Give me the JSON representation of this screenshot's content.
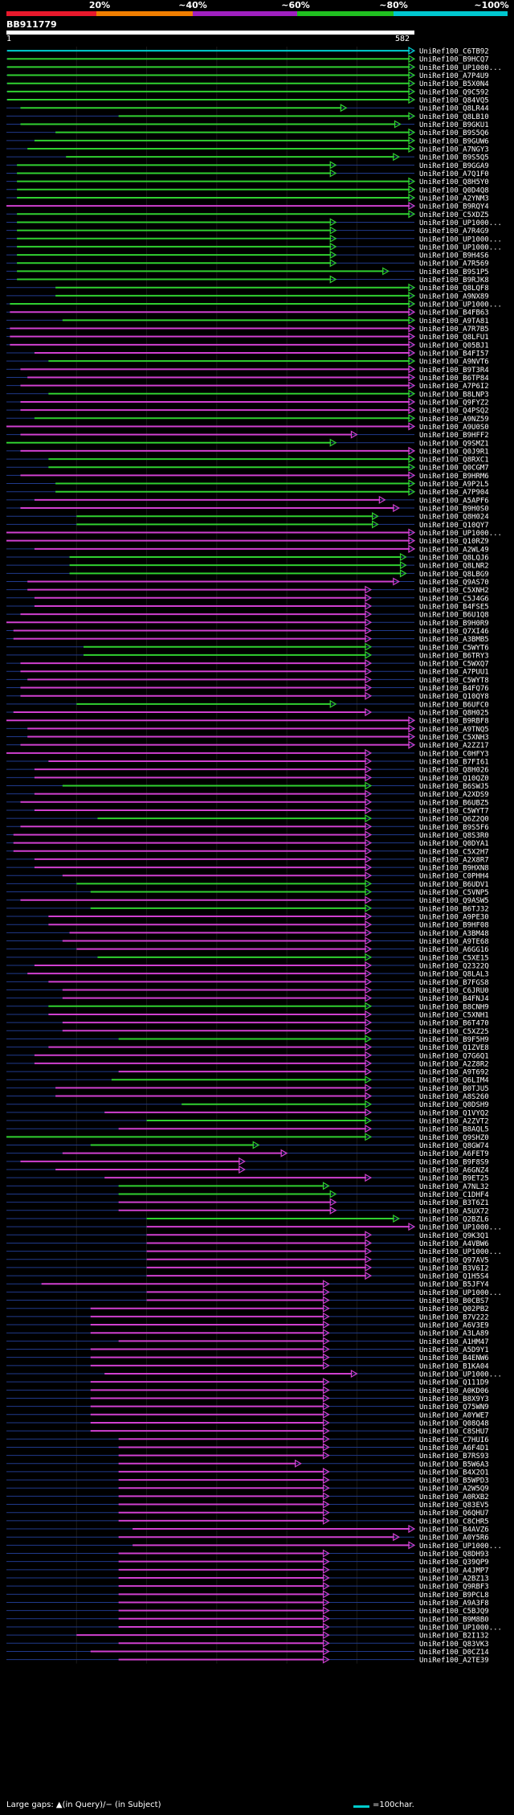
{
  "query": {
    "name": "BB911779",
    "start": "1",
    "end": "582",
    "length": 582
  },
  "legend": {
    "labels": [
      "20%",
      "~40%",
      "~60%",
      "~80%",
      "~100%"
    ],
    "colors": [
      "#e8192c",
      "#f07e00",
      "#a020c0",
      "#20c020",
      "#00c8d0"
    ]
  },
  "hit_colors": {
    "cyan": "#00d0d0",
    "green": "#30d030",
    "magenta": "#d040d0",
    "label": "#ffffff",
    "blue_line": "#203a8c"
  },
  "footer": {
    "note": "Large gaps: ▲(in Query)/− (in Subject)",
    "scale_label": "=100char."
  },
  "hits": [
    {
      "id": "UniRef100_C6TB92",
      "s": 1,
      "e": 582,
      "c": "cyan"
    },
    {
      "id": "UniRef100_B9HCQ7",
      "s": 1,
      "e": 582,
      "c": "green"
    },
    {
      "id": "UniRef100_UP1000...",
      "s": 1,
      "e": 582,
      "c": "green"
    },
    {
      "id": "UniRef100_A7P4U9",
      "s": 1,
      "e": 582,
      "c": "green"
    },
    {
      "id": "UniRef100_B5X0N4",
      "s": 1,
      "e": 582,
      "c": "green"
    },
    {
      "id": "UniRef100_Q9C592",
      "s": 1,
      "e": 582,
      "c": "green"
    },
    {
      "id": "UniRef100_Q84VQ5",
      "s": 1,
      "e": 582,
      "c": "green"
    },
    {
      "id": "UniRef100_Q8LR44",
      "s": 20,
      "e": 485,
      "c": "green"
    },
    {
      "id": "UniRef100_Q8LB10",
      "s": 160,
      "e": 582,
      "c": "green"
    },
    {
      "id": "UniRef100_B9GKU1",
      "s": 20,
      "e": 562,
      "c": "green"
    },
    {
      "id": "UniRef100_B9S5Q6",
      "s": 70,
      "e": 582,
      "c": "green"
    },
    {
      "id": "UniRef100_B9GUW6",
      "s": 40,
      "e": 582,
      "c": "green"
    },
    {
      "id": "UniRef100_A7NGY3",
      "s": 30,
      "e": 582,
      "c": "green"
    },
    {
      "id": "UniRef100_B9S5Q5",
      "s": 85,
      "e": 560,
      "c": "green"
    },
    {
      "id": "UniRef100_B9GGA9",
      "s": 15,
      "e": 470,
      "c": "green"
    },
    {
      "id": "UniRef100_A7Q1F0",
      "s": 15,
      "e": 470,
      "c": "green"
    },
    {
      "id": "UniRef100_Q8H5Y0",
      "s": 15,
      "e": 582,
      "c": "green"
    },
    {
      "id": "UniRef100_Q0D4Q8",
      "s": 15,
      "e": 582,
      "c": "green"
    },
    {
      "id": "UniRef100_A2YNM3",
      "s": 15,
      "e": 582,
      "c": "green"
    },
    {
      "id": "UniRef100_B9RQY4",
      "s": 0,
      "e": 582,
      "c": "magenta"
    },
    {
      "id": "UniRef100_C5XDZ5",
      "s": 15,
      "e": 582,
      "c": "green"
    },
    {
      "id": "UniRef100_UP1000...",
      "s": 15,
      "e": 470,
      "c": "green"
    },
    {
      "id": "UniRef100_A7R4G9",
      "s": 15,
      "e": 470,
      "c": "green"
    },
    {
      "id": "UniRef100_UP1000...",
      "s": 15,
      "e": 470,
      "c": "green"
    },
    {
      "id": "UniRef100_UP1000...",
      "s": 15,
      "e": 470,
      "c": "green"
    },
    {
      "id": "UniRef100_B9H4S6",
      "s": 15,
      "e": 470,
      "c": "green"
    },
    {
      "id": "UniRef100_A7R569",
      "s": 15,
      "e": 470,
      "c": "green"
    },
    {
      "id": "UniRef100_B9S1P5",
      "s": 15,
      "e": 545,
      "c": "green"
    },
    {
      "id": "UniRef100_B9RJK8",
      "s": 15,
      "e": 470,
      "c": "green"
    },
    {
      "id": "UniRef100_Q8LQF8",
      "s": 70,
      "e": 582,
      "c": "green"
    },
    {
      "id": "UniRef100_A9NX89",
      "s": 70,
      "e": 582,
      "c": "green"
    },
    {
      "id": "UniRef100_UP1000...",
      "s": 5,
      "e": 582,
      "c": "green"
    },
    {
      "id": "UniRef100_B4FB63",
      "s": 5,
      "e": 582,
      "c": "magenta"
    },
    {
      "id": "UniRef100_A9TA81",
      "s": 80,
      "e": 582,
      "c": "green"
    },
    {
      "id": "UniRef100_A7R7B5",
      "s": 5,
      "e": 582,
      "c": "magenta"
    },
    {
      "id": "UniRef100_Q8LFU1",
      "s": 5,
      "e": 582,
      "c": "magenta"
    },
    {
      "id": "UniRef100_Q05BJ1",
      "s": 5,
      "e": 582,
      "c": "magenta"
    },
    {
      "id": "UniRef100_B4FI57",
      "s": 40,
      "e": 582,
      "c": "magenta"
    },
    {
      "id": "UniRef100_A9NVT6",
      "s": 60,
      "e": 582,
      "c": "green"
    },
    {
      "id": "UniRef100_B9T3R4",
      "s": 20,
      "e": 582,
      "c": "magenta"
    },
    {
      "id": "UniRef100_B6TP84",
      "s": 30,
      "e": 582,
      "c": "magenta"
    },
    {
      "id": "UniRef100_A7P6I2",
      "s": 20,
      "e": 582,
      "c": "magenta"
    },
    {
      "id": "UniRef100_B8LNP3",
      "s": 60,
      "e": 582,
      "c": "green"
    },
    {
      "id": "UniRef100_Q9FYZ2",
      "s": 20,
      "e": 582,
      "c": "magenta"
    },
    {
      "id": "UniRef100_Q4PSQ2",
      "s": 20,
      "e": 582,
      "c": "magenta"
    },
    {
      "id": "UniRef100_A9NZ59",
      "s": 40,
      "e": 582,
      "c": "green"
    },
    {
      "id": "UniRef100_A9U0S0",
      "s": 0,
      "e": 582,
      "c": "magenta"
    },
    {
      "id": "UniRef100_B9HFF2",
      "s": 20,
      "e": 500,
      "c": "magenta"
    },
    {
      "id": "UniRef100_Q9SMZ1",
      "s": 0,
      "e": 470,
      "c": "green"
    },
    {
      "id": "UniRef100_Q0J9R1",
      "s": 20,
      "e": 582,
      "c": "magenta"
    },
    {
      "id": "UniRef100_Q8RXC1",
      "s": 60,
      "e": 582,
      "c": "green"
    },
    {
      "id": "UniRef100_Q0CGM7",
      "s": 60,
      "e": 582,
      "c": "green"
    },
    {
      "id": "UniRef100_B9HRM6",
      "s": 20,
      "e": 582,
      "c": "magenta"
    },
    {
      "id": "UniRef100_A9P2L5",
      "s": 70,
      "e": 582,
      "c": "green"
    },
    {
      "id": "UniRef100_A7P904",
      "s": 70,
      "e": 582,
      "c": "green"
    },
    {
      "id": "UniRef100_A5APF6",
      "s": 40,
      "e": 540,
      "c": "magenta"
    },
    {
      "id": "UniRef100_B9H0S0",
      "s": 20,
      "e": 560,
      "c": "magenta"
    },
    {
      "id": "UniRef100_Q8H024",
      "s": 100,
      "e": 530,
      "c": "green"
    },
    {
      "id": "UniRef100_Q10QY7",
      "s": 100,
      "e": 530,
      "c": "green"
    },
    {
      "id": "UniRef100_UP1000...",
      "s": 0,
      "e": 582,
      "c": "magenta"
    },
    {
      "id": "UniRef100_Q10RZ9",
      "s": 0,
      "e": 582,
      "c": "magenta"
    },
    {
      "id": "UniRef100_A2WL49",
      "s": 40,
      "e": 582,
      "c": "magenta"
    },
    {
      "id": "UniRef100_Q8LQJ6",
      "s": 90,
      "e": 570,
      "c": "green"
    },
    {
      "id": "UniRef100_Q8LNR2",
      "s": 90,
      "e": 570,
      "c": "green"
    },
    {
      "id": "UniRef100_Q8LBG9",
      "s": 90,
      "e": 570,
      "c": "green"
    },
    {
      "id": "UniRef100_Q9AS70",
      "s": 30,
      "e": 560,
      "c": "magenta"
    },
    {
      "id": "UniRef100_C5XNH2",
      "s": 30,
      "e": 520,
      "c": "magenta"
    },
    {
      "id": "UniRef100_C5J4G6",
      "s": 40,
      "e": 520,
      "c": "magenta"
    },
    {
      "id": "UniRef100_B4FSE5",
      "s": 40,
      "e": 520,
      "c": "magenta"
    },
    {
      "id": "UniRef100_B6U1Q8",
      "s": 20,
      "e": 520,
      "c": "magenta"
    },
    {
      "id": "UniRef100_B9H0R9",
      "s": 0,
      "e": 520,
      "c": "magenta"
    },
    {
      "id": "UniRef100_Q7XI46",
      "s": 10,
      "e": 520,
      "c": "magenta"
    },
    {
      "id": "UniRef100_A3BMB5",
      "s": 10,
      "e": 520,
      "c": "magenta"
    },
    {
      "id": "UniRef100_C5WYT6",
      "s": 110,
      "e": 520,
      "c": "green"
    },
    {
      "id": "UniRef100_B6TRY3",
      "s": 110,
      "e": 520,
      "c": "green"
    },
    {
      "id": "UniRef100_C5WXQ7",
      "s": 20,
      "e": 520,
      "c": "magenta"
    },
    {
      "id": "UniRef100_A7PUU1",
      "s": 20,
      "e": 520,
      "c": "magenta"
    },
    {
      "id": "UniRef100_C5WYT8",
      "s": 30,
      "e": 520,
      "c": "magenta"
    },
    {
      "id": "UniRef100_B4FQ76",
      "s": 20,
      "e": 520,
      "c": "magenta"
    },
    {
      "id": "UniRef100_Q10QY8",
      "s": 20,
      "e": 520,
      "c": "magenta"
    },
    {
      "id": "UniRef100_B6UFC0",
      "s": 100,
      "e": 470,
      "c": "green"
    },
    {
      "id": "UniRef100_Q8H025",
      "s": 10,
      "e": 520,
      "c": "magenta"
    },
    {
      "id": "UniRef100_B9RBF8",
      "s": 0,
      "e": 582,
      "c": "magenta"
    },
    {
      "id": "UniRef100_A9TNQ5",
      "s": 30,
      "e": 582,
      "c": "magenta"
    },
    {
      "id": "UniRef100_C5XNH3",
      "s": 30,
      "e": 582,
      "c": "magenta"
    },
    {
      "id": "UniRef100_A2ZZ17",
      "s": 20,
      "e": 582,
      "c": "magenta"
    },
    {
      "id": "UniRef100_C0HFY3",
      "s": 0,
      "e": 520,
      "c": "magenta"
    },
    {
      "id": "UniRef100_B7FI61",
      "s": 60,
      "e": 520,
      "c": "magenta"
    },
    {
      "id": "UniRef100_Q8H026",
      "s": 40,
      "e": 520,
      "c": "magenta"
    },
    {
      "id": "UniRef100_Q10QZ0",
      "s": 40,
      "e": 520,
      "c": "magenta"
    },
    {
      "id": "UniRef100_B6SWJ5",
      "s": 80,
      "e": 520,
      "c": "green"
    },
    {
      "id": "UniRef100_A2XDS9",
      "s": 40,
      "e": 520,
      "c": "magenta"
    },
    {
      "id": "UniRef100_B6UBZ5",
      "s": 20,
      "e": 520,
      "c": "magenta"
    },
    {
      "id": "UniRef100_C5WYT7",
      "s": 40,
      "e": 520,
      "c": "magenta"
    },
    {
      "id": "UniRef100_Q6Z2Q0",
      "s": 130,
      "e": 520,
      "c": "green"
    },
    {
      "id": "UniRef100_B9S5F6",
      "s": 20,
      "e": 520,
      "c": "magenta"
    },
    {
      "id": "UniRef100_Q8S3R0",
      "s": 10,
      "e": 520,
      "c": "magenta"
    },
    {
      "id": "UniRef100_Q0DYA1",
      "s": 10,
      "e": 520,
      "c": "magenta"
    },
    {
      "id": "UniRef100_C5X2H7",
      "s": 10,
      "e": 520,
      "c": "magenta"
    },
    {
      "id": "UniRef100_A2X8R7",
      "s": 40,
      "e": 520,
      "c": "magenta"
    },
    {
      "id": "UniRef100_B9HXN8",
      "s": 40,
      "e": 520,
      "c": "magenta"
    },
    {
      "id": "UniRef100_C0PHH4",
      "s": 80,
      "e": 520,
      "c": "magenta"
    },
    {
      "id": "UniRef100_B6UDV1",
      "s": 100,
      "e": 520,
      "c": "green"
    },
    {
      "id": "UniRef100_C5VNP5",
      "s": 120,
      "e": 520,
      "c": "green"
    },
    {
      "id": "UniRef100_Q9ASW5",
      "s": 20,
      "e": 520,
      "c": "magenta"
    },
    {
      "id": "UniRef100_B6TJ32",
      "s": 120,
      "e": 520,
      "c": "green"
    },
    {
      "id": "UniRef100_A9PE30",
      "s": 60,
      "e": 520,
      "c": "magenta"
    },
    {
      "id": "UniRef100_B9HF08",
      "s": 60,
      "e": 520,
      "c": "magenta"
    },
    {
      "id": "UniRef100_A3BM48",
      "s": 90,
      "e": 520,
      "c": "magenta"
    },
    {
      "id": "UniRef100_A9TE68",
      "s": 80,
      "e": 520,
      "c": "magenta"
    },
    {
      "id": "UniRef100_A6GG16",
      "s": 100,
      "e": 520,
      "c": "magenta"
    },
    {
      "id": "UniRef100_C5XE15",
      "s": 130,
      "e": 520,
      "c": "green"
    },
    {
      "id": "UniRef100_Q2322Q",
      "s": 40,
      "e": 520,
      "c": "magenta"
    },
    {
      "id": "UniRef100_Q8LAL3",
      "s": 30,
      "e": 520,
      "c": "magenta"
    },
    {
      "id": "UniRef100_B7FGS8",
      "s": 60,
      "e": 520,
      "c": "magenta"
    },
    {
      "id": "UniRef100_C6JRU0",
      "s": 80,
      "e": 520,
      "c": "magenta"
    },
    {
      "id": "UniRef100_B4FNJ4",
      "s": 80,
      "e": 520,
      "c": "magenta"
    },
    {
      "id": "UniRef100_B8CNH9",
      "s": 60,
      "e": 520,
      "c": "green"
    },
    {
      "id": "UniRef100_C5XNH1",
      "s": 60,
      "e": 520,
      "c": "magenta"
    },
    {
      "id": "UniRef100_B6T470",
      "s": 80,
      "e": 520,
      "c": "magenta"
    },
    {
      "id": "UniRef100_C5XZ25",
      "s": 80,
      "e": 520,
      "c": "magenta"
    },
    {
      "id": "UniRef100_B9F5H9",
      "s": 160,
      "e": 520,
      "c": "green"
    },
    {
      "id": "UniRef100_Q1ZVE8",
      "s": 60,
      "e": 520,
      "c": "magenta"
    },
    {
      "id": "UniRef100_Q7G6Q1",
      "s": 40,
      "e": 520,
      "c": "magenta"
    },
    {
      "id": "UniRef100_A2Z8R2",
      "s": 40,
      "e": 520,
      "c": "magenta"
    },
    {
      "id": "UniRef100_A9T692",
      "s": 160,
      "e": 520,
      "c": "magenta"
    },
    {
      "id": "UniRef100_Q6LIM4",
      "s": 150,
      "e": 520,
      "c": "green"
    },
    {
      "id": "UniRef100_B0TJU5",
      "s": 70,
      "e": 520,
      "c": "magenta"
    },
    {
      "id": "UniRef100_A8S260",
      "s": 70,
      "e": 520,
      "c": "magenta"
    },
    {
      "id": "UniRef100_Q0DSH9",
      "s": 250,
      "e": 520,
      "c": "green"
    },
    {
      "id": "UniRef100_Q1VYQ2",
      "s": 140,
      "e": 520,
      "c": "magenta"
    },
    {
      "id": "UniRef100_A2ZVT2",
      "s": 200,
      "e": 520,
      "c": "green"
    },
    {
      "id": "UniRef100_B8AQL5",
      "s": 160,
      "e": 520,
      "c": "magenta"
    },
    {
      "id": "UniRef100_Q9SHZ0",
      "s": 0,
      "e": 520,
      "c": "green"
    },
    {
      "id": "UniRef100_Q8GW74",
      "s": 120,
      "e": 360,
      "c": "green"
    },
    {
      "id": "UniRef100_A6FET9",
      "s": 80,
      "e": 400,
      "c": "magenta"
    },
    {
      "id": "UniRef100_B9F8S9",
      "s": 20,
      "e": 340,
      "c": "magenta"
    },
    {
      "id": "UniRef100_A6GNZ4",
      "s": 70,
      "e": 340,
      "c": "magenta"
    },
    {
      "id": "UniRef100_B9ET25",
      "s": 140,
      "e": 520,
      "c": "magenta"
    },
    {
      "id": "UniRef100_A7NL32",
      "s": 160,
      "e": 460,
      "c": "green"
    },
    {
      "id": "UniRef100_C1DHF4",
      "s": 160,
      "e": 470,
      "c": "green"
    },
    {
      "id": "UniRef100_B3T6Z1",
      "s": 160,
      "e": 470,
      "c": "magenta"
    },
    {
      "id": "UniRef100_A5UX72",
      "s": 160,
      "e": 470,
      "c": "magenta"
    },
    {
      "id": "UniRef100_Q2BZL6",
      "s": 200,
      "e": 560,
      "c": "green"
    },
    {
      "id": "UniRef100_UP1000...",
      "s": 200,
      "e": 582,
      "c": "magenta"
    },
    {
      "id": "UniRef100_Q9K3Q1",
      "s": 200,
      "e": 520,
      "c": "magenta"
    },
    {
      "id": "UniRef100_A4VBW6",
      "s": 200,
      "e": 520,
      "c": "magenta"
    },
    {
      "id": "UniRef100_UP1000...",
      "s": 200,
      "e": 520,
      "c": "magenta"
    },
    {
      "id": "UniRef100_Q97AV5",
      "s": 200,
      "e": 520,
      "c": "magenta"
    },
    {
      "id": "UniRef100_B3V6I2",
      "s": 200,
      "e": 520,
      "c": "magenta"
    },
    {
      "id": "UniRef100_Q1H5S4",
      "s": 200,
      "e": 520,
      "c": "magenta"
    },
    {
      "id": "UniRef100_B5JFY4",
      "s": 50,
      "e": 460,
      "c": "magenta"
    },
    {
      "id": "UniRef100_UP1000...",
      "s": 200,
      "e": 460,
      "c": "magenta"
    },
    {
      "id": "UniRef100_B0CBS7",
      "s": 200,
      "e": 460,
      "c": "magenta"
    },
    {
      "id": "UniRef100_Q02PB2",
      "s": 120,
      "e": 460,
      "c": "magenta"
    },
    {
      "id": "UniRef100_B7V222",
      "s": 120,
      "e": 460,
      "c": "magenta"
    },
    {
      "id": "UniRef100_A6V3E9",
      "s": 120,
      "e": 460,
      "c": "magenta"
    },
    {
      "id": "UniRef100_A3LA89",
      "s": 120,
      "e": 460,
      "c": "magenta"
    },
    {
      "id": "UniRef100_A1HM47",
      "s": 160,
      "e": 460,
      "c": "magenta"
    },
    {
      "id": "UniRef100_A5D9Y1",
      "s": 120,
      "e": 460,
      "c": "magenta"
    },
    {
      "id": "UniRef100_B4ENW6",
      "s": 120,
      "e": 460,
      "c": "magenta"
    },
    {
      "id": "UniRef100_B1KA04",
      "s": 120,
      "e": 460,
      "c": "magenta"
    },
    {
      "id": "UniRef100_UP1000...",
      "s": 140,
      "e": 500,
      "c": "magenta"
    },
    {
      "id": "UniRef100_Q111D9",
      "s": 120,
      "e": 460,
      "c": "magenta"
    },
    {
      "id": "UniRef100_A0KD06",
      "s": 120,
      "e": 460,
      "c": "magenta"
    },
    {
      "id": "UniRef100_B8X9Y3",
      "s": 120,
      "e": 460,
      "c": "magenta"
    },
    {
      "id": "UniRef100_Q75WN9",
      "s": 120,
      "e": 460,
      "c": "magenta"
    },
    {
      "id": "UniRef100_A0YWE7",
      "s": 120,
      "e": 460,
      "c": "magenta"
    },
    {
      "id": "UniRef100_Q08Q48",
      "s": 120,
      "e": 460,
      "c": "magenta"
    },
    {
      "id": "UniRef100_C8SHU7",
      "s": 120,
      "e": 460,
      "c": "magenta"
    },
    {
      "id": "UniRef100_C7HUI6",
      "s": 160,
      "e": 460,
      "c": "magenta"
    },
    {
      "id": "UniRef100_A6F4D1",
      "s": 160,
      "e": 460,
      "c": "magenta"
    },
    {
      "id": "UniRef100_B7RS93",
      "s": 160,
      "e": 460,
      "c": "magenta"
    },
    {
      "id": "UniRef100_B5W6A3",
      "s": 160,
      "e": 420,
      "c": "magenta"
    },
    {
      "id": "UniRef100_B4X2O1",
      "s": 160,
      "e": 460,
      "c": "magenta"
    },
    {
      "id": "UniRef100_B5WPD3",
      "s": 160,
      "e": 460,
      "c": "magenta"
    },
    {
      "id": "UniRef100_A2W5Q9",
      "s": 160,
      "e": 460,
      "c": "magenta"
    },
    {
      "id": "UniRef100_A0RXB2",
      "s": 160,
      "e": 460,
      "c": "magenta"
    },
    {
      "id": "UniRef100_Q83EV5",
      "s": 160,
      "e": 460,
      "c": "magenta"
    },
    {
      "id": "UniRef100_Q6QHU7",
      "s": 160,
      "e": 460,
      "c": "magenta"
    },
    {
      "id": "UniRef100_C8CHR5",
      "s": 160,
      "e": 460,
      "c": "magenta"
    },
    {
      "id": "UniRef100_B4AVZ6",
      "s": 180,
      "e": 582,
      "c": "magenta"
    },
    {
      "id": "UniRef100_A0Y5R6",
      "s": 160,
      "e": 560,
      "c": "magenta"
    },
    {
      "id": "UniRef100_UP1000...",
      "s": 180,
      "e": 582,
      "c": "magenta"
    },
    {
      "id": "UniRef100_Q8DH93",
      "s": 160,
      "e": 460,
      "c": "magenta"
    },
    {
      "id": "UniRef100_Q39QP9",
      "s": 160,
      "e": 460,
      "c": "magenta"
    },
    {
      "id": "UniRef100_A4JMP7",
      "s": 160,
      "e": 460,
      "c": "magenta"
    },
    {
      "id": "UniRef100_A2BZ13",
      "s": 160,
      "e": 460,
      "c": "magenta"
    },
    {
      "id": "UniRef100_Q9RBF3",
      "s": 160,
      "e": 460,
      "c": "magenta"
    },
    {
      "id": "UniRef100_B9PCL8",
      "s": 160,
      "e": 460,
      "c": "magenta"
    },
    {
      "id": "UniRef100_A9A3F8",
      "s": 160,
      "e": 460,
      "c": "magenta"
    },
    {
      "id": "UniRef100_C5BJQ9",
      "s": 160,
      "e": 460,
      "c": "magenta"
    },
    {
      "id": "UniRef100_B9M8B0",
      "s": 160,
      "e": 460,
      "c": "magenta"
    },
    {
      "id": "UniRef100_UP1000...",
      "s": 160,
      "e": 460,
      "c": "magenta"
    },
    {
      "id": "UniRef100_B2I132",
      "s": 100,
      "e": 460,
      "c": "magenta"
    },
    {
      "id": "UniRef100_Q83VK3",
      "s": 160,
      "e": 460,
      "c": "magenta"
    },
    {
      "id": "UniRef100_D0CZ14",
      "s": 120,
      "e": 460,
      "c": "magenta"
    },
    {
      "id": "UniRef100_A2TE39",
      "s": 160,
      "e": 460,
      "c": "magenta"
    }
  ]
}
